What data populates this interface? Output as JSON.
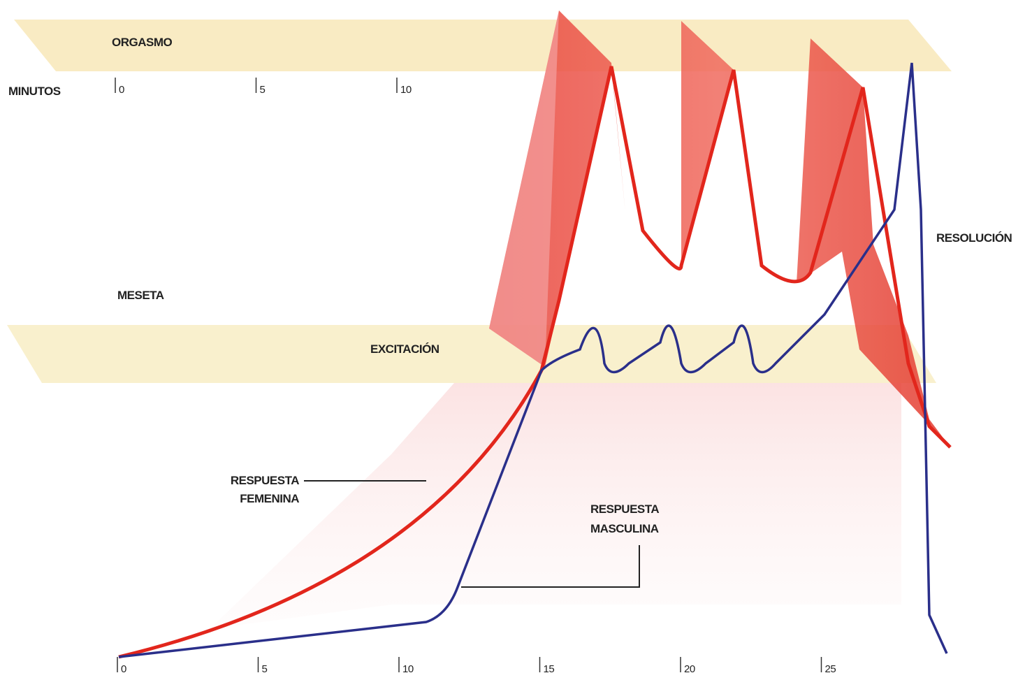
{
  "phases": {
    "orgasm": "ORGASMO",
    "plateau": "MESETA",
    "excitement": "EXCITACIÓN",
    "resolution": "RESOLUCIÓN"
  },
  "top_axis": {
    "label": "MINUTOS",
    "ticks": [
      "0",
      "5",
      "10"
    ]
  },
  "bottom_axis": {
    "ticks": [
      "0",
      "5",
      "10",
      "15",
      "20",
      "25"
    ]
  },
  "female_response": {
    "lines": [
      "RESPUESTA",
      "FEMENINA"
    ]
  },
  "male_response": {
    "lines": [
      "RESPUESTA",
      "MASCULINA"
    ]
  }
}
